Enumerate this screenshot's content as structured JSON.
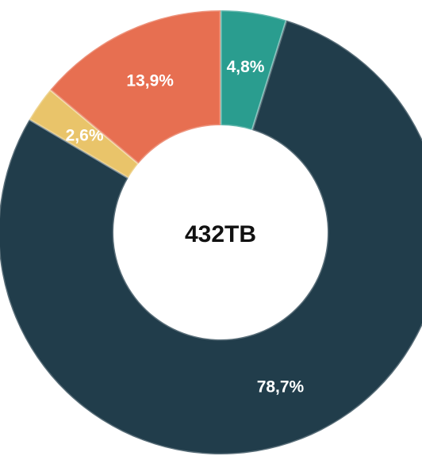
{
  "chart_data": {
    "type": "donut",
    "values": [
      4.8,
      78.7,
      2.6,
      13.9
    ],
    "value_labels": [
      "4,8%",
      "78,7%",
      "2,6%",
      "13,9%"
    ],
    "colors": [
      "#2a9d8f",
      "#213d4b",
      "#e9c46a",
      "#e76f51"
    ],
    "center_label": "432TB"
  }
}
